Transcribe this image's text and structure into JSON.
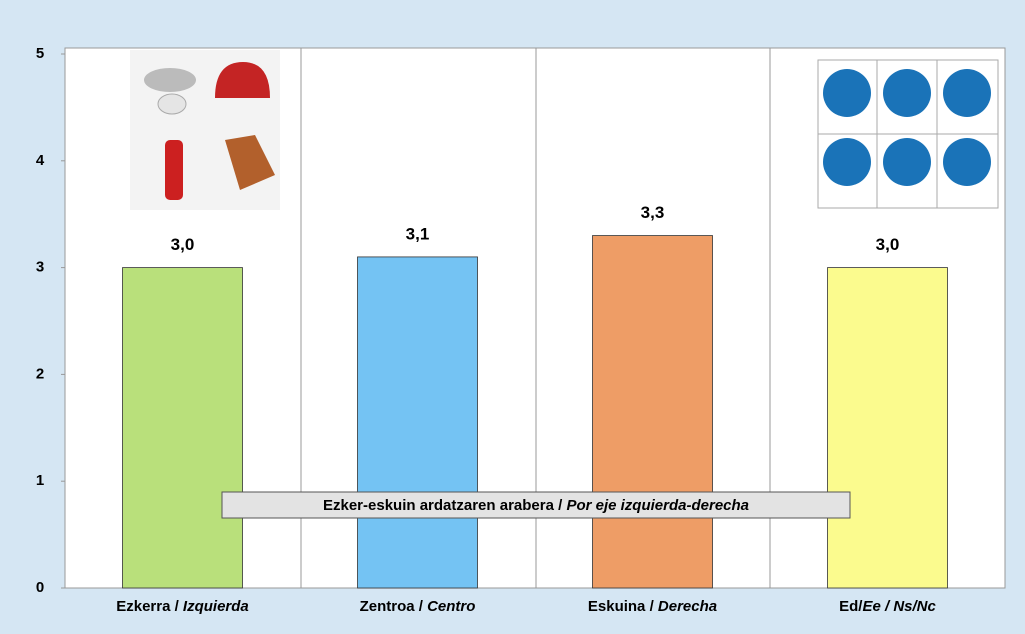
{
  "chart_data": {
    "type": "bar",
    "categories": [
      "Ezkerra / Izquierda",
      "Zentroa / Centro",
      "Eskuina / Derecha",
      "Ed/Ee / Ns/Nc"
    ],
    "values": [
      3.0,
      3.1,
      3.3,
      3.0
    ],
    "value_labels": [
      "3,0",
      "3,1",
      "3,3",
      "3,0"
    ],
    "colors": [
      "#b9e07b",
      "#74c3f3",
      "#ee9d66",
      "#fbfb8e"
    ],
    "ylim": [
      0,
      5
    ],
    "yticks": [
      0,
      1,
      2,
      3,
      4,
      5
    ],
    "annotation": "Ezker-eskuin ardatzaren arabera / Por eje izquierda-derecha"
  }
}
